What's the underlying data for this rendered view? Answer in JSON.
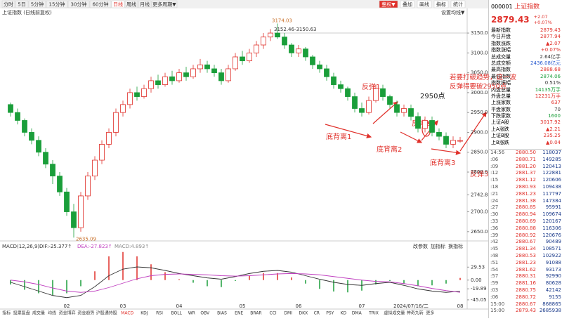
{
  "toolbar": {
    "tabs": [
      "分时",
      "5日",
      "5分钟",
      "15分钟",
      "30分钟",
      "60分钟",
      "日线",
      "周线",
      "月线",
      "更多周期▼"
    ],
    "active": 6,
    "tools": [
      "整权▼",
      "叠加",
      "画线",
      "指标",
      "统计"
    ]
  },
  "chart_data": {
    "type": "candlestick",
    "title": "上证指数 (日线前复权)",
    "setting_label": "设置均线▼",
    "up_color": "#e0302a",
    "down_color": "#1a9e3a",
    "categories": [
      null,
      null,
      null,
      null,
      null,
      null,
      null,
      null,
      "02",
      null,
      null,
      null,
      null,
      null,
      null,
      null,
      "03",
      null,
      null,
      null,
      null,
      null,
      null,
      null,
      "04",
      null,
      null,
      null,
      null,
      null,
      null,
      null,
      null,
      "05",
      null,
      null,
      null,
      null,
      null,
      null,
      null,
      "06",
      null,
      null,
      null,
      null,
      null,
      null,
      null,
      null,
      "07",
      null,
      null,
      null,
      null,
      null,
      null,
      "2024/07/16/二",
      null,
      null,
      null,
      null,
      null,
      null,
      "08"
    ],
    "ohlc": [
      [
        2970,
        2950,
        2975,
        2940
      ],
      [
        2950,
        2930,
        2960,
        2920
      ],
      [
        2930,
        2900,
        2935,
        2890
      ],
      [
        2900,
        2880,
        2910,
        2870
      ],
      [
        2880,
        2850,
        2890,
        2840
      ],
      [
        2850,
        2820,
        2860,
        2810
      ],
      [
        2820,
        2790,
        2830,
        2770
      ],
      [
        2790,
        2750,
        2800,
        2740
      ],
      [
        2750,
        2700,
        2760,
        2690
      ],
      [
        2700,
        2660,
        2720,
        2635.09
      ],
      [
        2660,
        2740,
        2750,
        2650
      ],
      [
        2740,
        2790,
        2800,
        2730
      ],
      [
        2790,
        2830,
        2840,
        2780
      ],
      [
        2830,
        2870,
        2880,
        2820
      ],
      [
        2870,
        2900,
        2910,
        2860
      ],
      [
        2900,
        2950,
        2960,
        2890
      ],
      [
        2950,
        2970,
        2980,
        2940
      ],
      [
        2970,
        3000,
        3010,
        2960
      ],
      [
        3000,
        2990,
        3015,
        2980
      ],
      [
        2990,
        3010,
        3020,
        2985
      ],
      [
        3010,
        3030,
        3040,
        3000
      ],
      [
        3030,
        3020,
        3045,
        3010
      ],
      [
        3020,
        3040,
        3050,
        3015
      ],
      [
        3040,
        3030,
        3055,
        3020
      ],
      [
        3030,
        3050,
        3060,
        3025
      ],
      [
        3050,
        3040,
        3065,
        3030
      ],
      [
        3040,
        3060,
        3070,
        3035
      ],
      [
        3060,
        3070,
        3085,
        3050
      ],
      [
        3070,
        3060,
        3080,
        3050
      ],
      [
        3060,
        3050,
        3070,
        3040
      ],
      [
        3050,
        3030,
        3060,
        3020
      ],
      [
        3030,
        3060,
        3070,
        3025
      ],
      [
        3060,
        3090,
        3100,
        3055
      ],
      [
        3090,
        3080,
        3105,
        3070
      ],
      [
        3080,
        3100,
        3110,
        3075
      ],
      [
        3100,
        3120,
        3130,
        3090
      ],
      [
        3120,
        3140,
        3150,
        3110
      ],
      [
        3140,
        3150,
        3160,
        3130
      ],
      [
        3150,
        3140,
        3174.03,
        3135
      ],
      [
        3140,
        3120,
        3150,
        3110
      ],
      [
        3120,
        3100,
        3125,
        3090
      ],
      [
        3100,
        3110,
        3120,
        3090
      ],
      [
        3110,
        3090,
        3115,
        3080
      ],
      [
        3090,
        3070,
        3095,
        3060
      ],
      [
        3070,
        3060,
        3080,
        3050
      ],
      [
        3060,
        3040,
        3070,
        3030
      ],
      [
        3040,
        3020,
        3050,
        3010
      ],
      [
        3020,
        3010,
        3030,
        3000
      ],
      [
        3010,
        2990,
        3015,
        2980
      ],
      [
        2990,
        2960,
        3000,
        2950
      ],
      [
        2960,
        2950,
        2975,
        2940
      ],
      [
        2950,
        2980,
        2990,
        2945
      ],
      [
        2980,
        3010,
        3020,
        2975
      ],
      [
        3010,
        2990,
        3020,
        2980
      ],
      [
        2990,
        2970,
        2995,
        2960
      ],
      [
        2970,
        2950,
        2980,
        2940
      ],
      [
        2950,
        2960,
        2970,
        2940
      ],
      [
        2960,
        2940,
        2970,
        2930
      ],
      [
        2940,
        2910,
        2950,
        2900
      ],
      [
        2910,
        2930,
        2940,
        2900
      ],
      [
        2930,
        2900,
        2940,
        2890
      ],
      [
        2900,
        2890,
        2910,
        2880
      ],
      [
        2890,
        2870,
        2900,
        2860
      ],
      [
        2870,
        2880,
        2890,
        2860
      ],
      [
        2877.94,
        2879.43,
        2888.68,
        2874.06
      ]
    ],
    "ylim": [
      2632,
      3189
    ],
    "yticks": [
      {
        "value": 3150,
        "label": "3150.00"
      },
      {
        "value": 3100,
        "label": "3100.00"
      },
      {
        "value": 3050,
        "label": "3050.00"
      },
      {
        "value": 3000,
        "label": "3000.00"
      },
      {
        "value": 2950,
        "label": "2950.00"
      },
      {
        "value": 2900,
        "label": "2900.00"
      },
      {
        "value": 2850,
        "label": "2850.00"
      },
      {
        "value": 2800,
        "label": "2800.00"
      },
      2742.81,
      {
        "value": 2700,
        "label": "2700.00"
      },
      {
        "value": 2650,
        "label": "2650.00"
      }
    ],
    "low_label": "2635.09",
    "high_label": "3174.03",
    "range_label": "3152.46-3150.63",
    "annotations": {
      "rebound1": "反弹1",
      "point2950": "2950点",
      "note": "若要打破趋势，这一波反弹得要破2950点",
      "rebound2": "反弹2",
      "rebound3": "反弹3",
      "div1": "底背离1",
      "div2": "底背离2",
      "div3": "底背离3"
    }
  },
  "macd": {
    "type": "macd",
    "title": "MACD(12,26,9)",
    "dif_label": "DIF:-25.377↑",
    "dea_label": "DEA:-27.823↑",
    "macd_label": "MACD:4.893↑",
    "buttons": [
      "改参数",
      "加指标",
      "换指标"
    ],
    "ylim": [
      -50,
      70
    ],
    "yticks": [
      29.53,
      {
        "value": 0,
        "label": "0.00"
      },
      -19.89,
      -45.05
    ],
    "series": [
      {
        "name": "DIF",
        "color": "#333",
        "values": [
          -5,
          -15,
          -25,
          -35,
          -40,
          -35,
          -15,
          10,
          25,
          30,
          28,
          22,
          15,
          10,
          5,
          2,
          8,
          15,
          20,
          22,
          18,
          10,
          2,
          -5,
          -10,
          -12,
          -8,
          -5,
          -12,
          -20,
          -25,
          -28,
          -25.377
        ]
      },
      {
        "name": "DEA",
        "color": "#c040c0",
        "values": [
          0,
          -4,
          -10,
          -18,
          -25,
          -28,
          -25,
          -17,
          -7,
          3,
          10,
          13,
          14,
          13,
          12,
          10,
          9,
          10,
          12,
          14,
          15,
          14,
          12,
          8,
          4,
          0,
          -3,
          -4,
          -8,
          -13,
          -19,
          -24,
          -27.823
        ]
      }
    ],
    "histogram": [
      -10,
      -22,
      -30,
      -34,
      -30,
      -14,
      20,
      54,
      64,
      54,
      36,
      18,
      2,
      -6,
      -14,
      -16,
      -2,
      10,
      16,
      16,
      6,
      -8,
      -20,
      -26,
      -28,
      -24,
      -10,
      -2,
      -8,
      -14,
      -12,
      -8,
      4.893
    ]
  },
  "indicator_tabs": [
    "指标",
    "投票复盘",
    "成交量",
    "均线",
    "资金博弈",
    "资金趋势",
    "沪股通持股",
    "MACD",
    "KDJ",
    "RSI",
    "BOLL",
    "WR",
    "OBV",
    "BIAS",
    "ENE",
    "BRAR",
    "CCI",
    "DMI",
    "DKX",
    "CR",
    "PSY",
    "KD",
    "DMA",
    "TRIX",
    "虚拟成交量",
    "神奇九转",
    "更多"
  ],
  "quote": {
    "code": "000001",
    "name": "上证指数",
    "price": "2879.43",
    "change": "+2.07",
    "change_pct": "+0.07%",
    "fields": [
      [
        "最新指数",
        "2879.43",
        "#e0302a"
      ],
      [
        "今日开盘",
        "2877.94",
        "#e0302a"
      ],
      [
        "指数涨跌",
        "▲2.07",
        "#e0302a"
      ],
      [
        "指数涨幅",
        "+0.07%",
        "#e0302a"
      ],
      [
        "总成交量",
        "2.64亿手",
        "#333"
      ],
      [
        "总成交额",
        "2436.08亿元",
        "#2a5bd0"
      ],
      [
        "最高指数",
        "2888.68",
        "#e0302a"
      ],
      [
        "最低指数",
        "2874.06",
        "#1a9e3a"
      ],
      [
        "指数振幅",
        "0.51%",
        "#333"
      ],
      [
        "内盘总量",
        "14135万手",
        "#1a9e3a"
      ],
      [
        "外盘总量",
        "12231万手",
        "#e0302a"
      ],
      [
        "上涨家数",
        "637",
        "#e0302a"
      ],
      [
        "平盘家数",
        "70",
        "#333"
      ],
      [
        "下跌家数",
        "1600",
        "#1a9e3a"
      ],
      [
        "上证A股",
        "3017.92",
        "#e0302a"
      ],
      [
        "上A涨跌",
        "▲2.21",
        "#e0302a"
      ],
      [
        "上证B股",
        "235.25",
        "#e0302a"
      ],
      [
        "上B涨跌",
        "▲0.04",
        "#e0302a"
      ]
    ],
    "ticks": [
      [
        "14:56",
        "2880.50",
        "118037"
      ],
      [
        ":06",
        "2880.71",
        "149285"
      ],
      [
        ":09",
        "2881.20",
        "120413"
      ],
      [
        ":12",
        "2881.37",
        "122881"
      ],
      [
        ":15",
        "2881.12",
        "120606"
      ],
      [
        ":18",
        "2880.93",
        "109438"
      ],
      [
        ":21",
        "2881.23",
        "117797"
      ],
      [
        ":24",
        "2881.38",
        "147384"
      ],
      [
        ":27",
        "2880.85",
        "95991"
      ],
      [
        ":30",
        "2880.94",
        "109674"
      ],
      [
        ":33",
        "2880.69",
        "120167"
      ],
      [
        ":36",
        "2880.88",
        "116306"
      ],
      [
        ":39",
        "2880.92",
        "120676"
      ],
      [
        ":42",
        "2880.67",
        "90489"
      ],
      [
        ":45",
        "2881.34",
        "108571"
      ],
      [
        ":48",
        "2880.53",
        "102922"
      ],
      [
        ":51",
        "2881.23",
        "91088"
      ],
      [
        ":54",
        "2881.62",
        "93173"
      ],
      [
        ":57",
        "2880.31",
        "92990"
      ],
      [
        ":59",
        "2881.16",
        "80628"
      ],
      [
        ":03",
        "2880.75",
        "42142"
      ],
      [
        ":06",
        "2880.72",
        "9155"
      ],
      [
        "15:00",
        "2880.67",
        "868865"
      ],
      [
        "15:00",
        "2879.43",
        "2685938"
      ]
    ]
  }
}
